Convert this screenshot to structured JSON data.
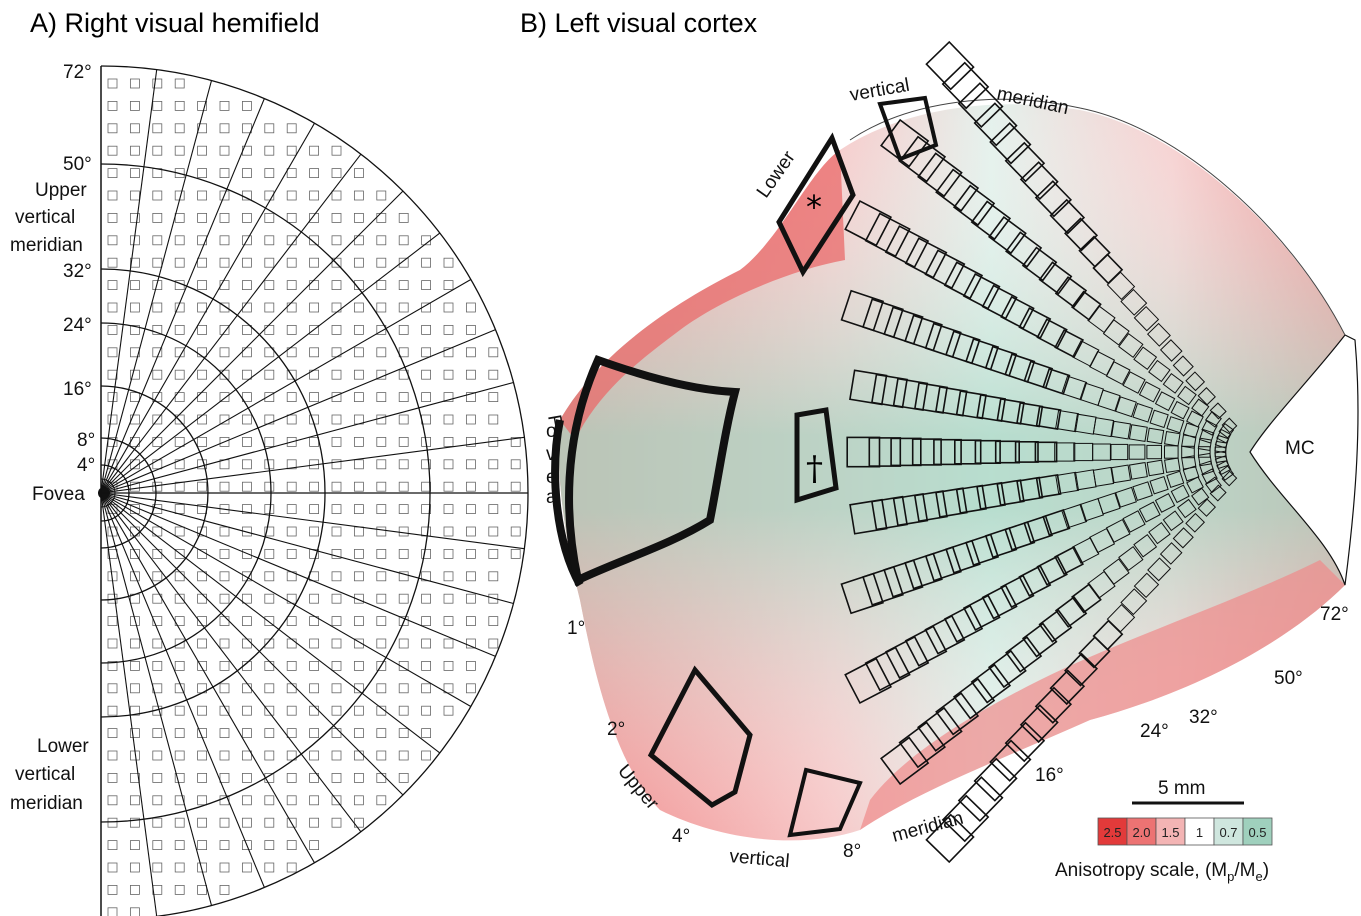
{
  "panel_a": {
    "title": "A)  Right visual hemifield",
    "eccentricity_labels": [
      "72°",
      "50°",
      "32°",
      "24°",
      "16°",
      "8°",
      "4°"
    ],
    "eccentricities": [
      72,
      50,
      32,
      24,
      16,
      8,
      4
    ],
    "fovea_label": "Fovea",
    "upper_meridian_label": [
      "Upper",
      "vertical",
      "meridian"
    ],
    "lower_meridian_label": [
      "Lower",
      "vertical",
      "meridian"
    ]
  },
  "panel_b": {
    "title": "B)  Left visual cortex",
    "top_labels": [
      "vertical",
      "meridian"
    ],
    "lower_label": "Lower",
    "fovea_letters": [
      "F",
      "o",
      "v",
      "e",
      "a"
    ],
    "mc_label": "MC",
    "asterisk": "*",
    "dagger": "†",
    "bottom_labels": [
      "Upper",
      "vertical",
      "meridian"
    ],
    "eccentricity_labels": [
      "1°",
      "2°",
      "4°",
      "8°",
      "16°",
      "24°",
      "32°",
      "50°",
      "72°"
    ]
  },
  "scale_bar": {
    "label": "5 mm"
  },
  "anisotropy": {
    "title": "Anisotropy scale, (M",
    "sub_p": "p",
    "slash": "/M",
    "sub_e": "e",
    "close": ")",
    "cells": [
      {
        "label": "2.5",
        "color": "#e23a3a"
      },
      {
        "label": "2.0",
        "color": "#ec7373"
      },
      {
        "label": "1.5",
        "color": "#f3b4b4"
      },
      {
        "label": "1",
        "color": "#ffffff"
      },
      {
        "label": "0.7",
        "color": "#cfe6de"
      },
      {
        "label": "0.5",
        "color": "#9fd0bd"
      }
    ]
  },
  "colors": {
    "red": "#e23a3a",
    "green": "#8fc8b2",
    "line": "#111111"
  }
}
